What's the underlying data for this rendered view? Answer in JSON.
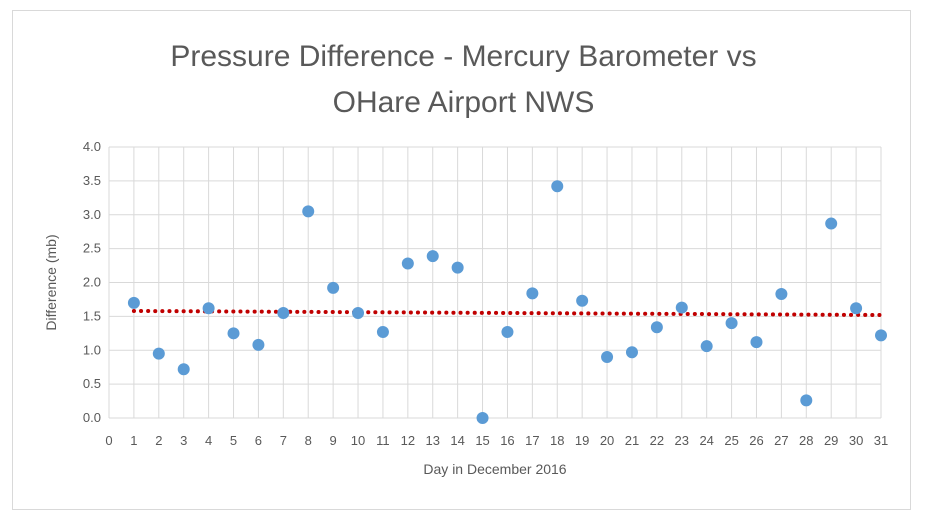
{
  "chart_data": {
    "type": "scatter",
    "title_lines": [
      "Pressure Difference - Mercury Barometer vs",
      "OHare Airport NWS"
    ],
    "xlabel": "Day in December 2016",
    "ylabel": "Difference (mb)",
    "xlim": [
      0,
      31
    ],
    "ylim": [
      0,
      4
    ],
    "x_ticks": [
      "0",
      "1",
      "2",
      "3",
      "4",
      "5",
      "6",
      "7",
      "8",
      "9",
      "10",
      "11",
      "12",
      "13",
      "14",
      "15",
      "16",
      "17",
      "18",
      "19",
      "20",
      "21",
      "22",
      "23",
      "24",
      "25",
      "26",
      "27",
      "28",
      "29",
      "30",
      "31"
    ],
    "y_ticks": [
      "0.0",
      "0.5",
      "1.0",
      "1.5",
      "2.0",
      "2.5",
      "3.0",
      "3.5",
      "4.0"
    ],
    "grid": true,
    "legend": "none",
    "series": [
      {
        "kind": "points",
        "color": "#5b9bd5",
        "x": [
          1,
          2,
          3,
          4,
          5,
          6,
          7,
          8,
          9,
          10,
          11,
          12,
          13,
          14,
          15,
          16,
          17,
          18,
          19,
          20,
          21,
          22,
          23,
          24,
          25,
          26,
          27,
          28,
          29,
          30,
          31
        ],
        "y": [
          1.7,
          0.95,
          0.72,
          1.62,
          1.25,
          1.08,
          1.55,
          3.05,
          1.92,
          1.55,
          1.27,
          2.28,
          2.39,
          2.22,
          0.0,
          1.27,
          1.84,
          3.42,
          1.73,
          0.9,
          0.97,
          1.34,
          1.63,
          1.06,
          1.4,
          1.12,
          1.83,
          0.26,
          2.87,
          1.62,
          1.22
        ]
      },
      {
        "kind": "trendline",
        "color": "#c00000",
        "x": [
          1,
          31
        ],
        "y": [
          1.58,
          1.52
        ]
      }
    ]
  }
}
